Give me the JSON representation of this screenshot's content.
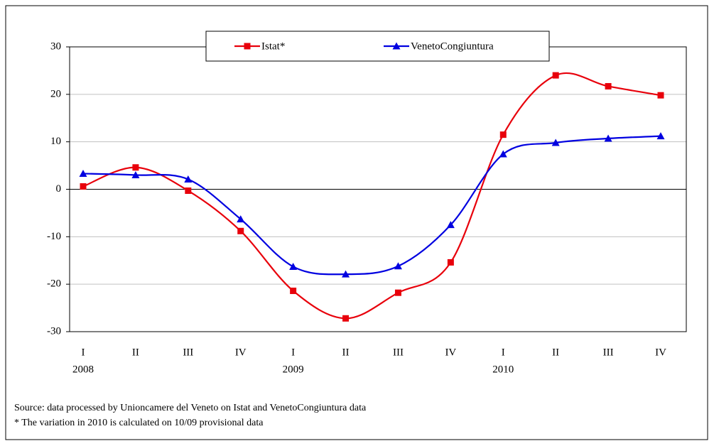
{
  "chart_data": {
    "type": "line",
    "categories": [
      "I",
      "II",
      "III",
      "IV",
      "I",
      "II",
      "III",
      "IV",
      "I",
      "II",
      "III",
      "IV"
    ],
    "years": [
      "2008",
      null,
      null,
      null,
      "2009",
      null,
      null,
      null,
      "2010",
      null,
      null,
      null
    ],
    "series": [
      {
        "name": "Istat*",
        "color": "#e8000b",
        "marker": "square",
        "values": [
          0.6,
          4.6,
          -0.3,
          -8.8,
          -21.4,
          -27.2,
          -21.8,
          -15.4,
          11.5,
          24,
          21.7,
          19.8
        ]
      },
      {
        "name": "VenetoCongiuntura",
        "color": "#0000e0",
        "marker": "triangle",
        "values": [
          3.3,
          3.0,
          2.1,
          -6.3,
          -16.3,
          -17.9,
          -16.2,
          -7.5,
          7.4,
          9.8,
          10.7,
          11.2
        ]
      }
    ],
    "ylim": [
      -30,
      30
    ],
    "yticks": [
      -30,
      -20,
      -10,
      0,
      10,
      20,
      30
    ],
    "grid": true,
    "notes": [
      "Source: data processed by Unioncamere del Veneto on Istat and VenetoCongiuntura data",
      "* The variation in 2010 is calculated on 10/09 provisional data"
    ]
  }
}
